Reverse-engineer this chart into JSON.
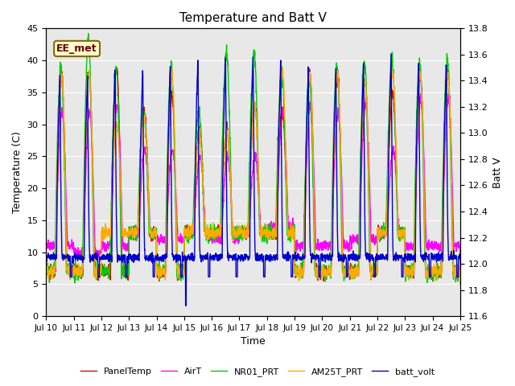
{
  "title": "Temperature and Batt V",
  "xlabel": "Time",
  "ylabel_left": "Temperature (C)",
  "ylabel_right": "Batt V",
  "ylim_left": [
    0,
    45
  ],
  "ylim_right": [
    11.6,
    13.8
  ],
  "annotation_text": "EE_met",
  "background_color": "#ffffff",
  "plot_bg_color": "#e8e8e8",
  "series_colors": {
    "PanelTemp": "#dd0000",
    "AirT": "#ff00ff",
    "NR01_PRT": "#00cc00",
    "AM25T_PRT": "#ffaa00",
    "batt_volt": "#0000cc"
  },
  "legend_labels": [
    "PanelTemp",
    "AirT",
    "NR01_PRT",
    "AM25T_PRT",
    "batt_volt"
  ],
  "xtick_labels": [
    "Jul 10",
    "Jul 11",
    "Jul 12",
    "Jul 13",
    "Jul 14",
    "Jul 15",
    "Jul 16",
    "Jul 17",
    "Jul 18",
    "Jul 19",
    "Jul 20",
    "Jul 21",
    "Jul 22",
    "Jul 23",
    "Jul 24",
    "Jul 25"
  ],
  "n_days": 15,
  "yticks_left": [
    0,
    5,
    10,
    15,
    20,
    25,
    30,
    35,
    40,
    45
  ],
  "yticks_right": [
    11.6,
    11.8,
    12.0,
    12.2,
    12.4,
    12.6,
    12.8,
    13.0,
    13.2,
    13.4,
    13.6,
    13.8
  ]
}
